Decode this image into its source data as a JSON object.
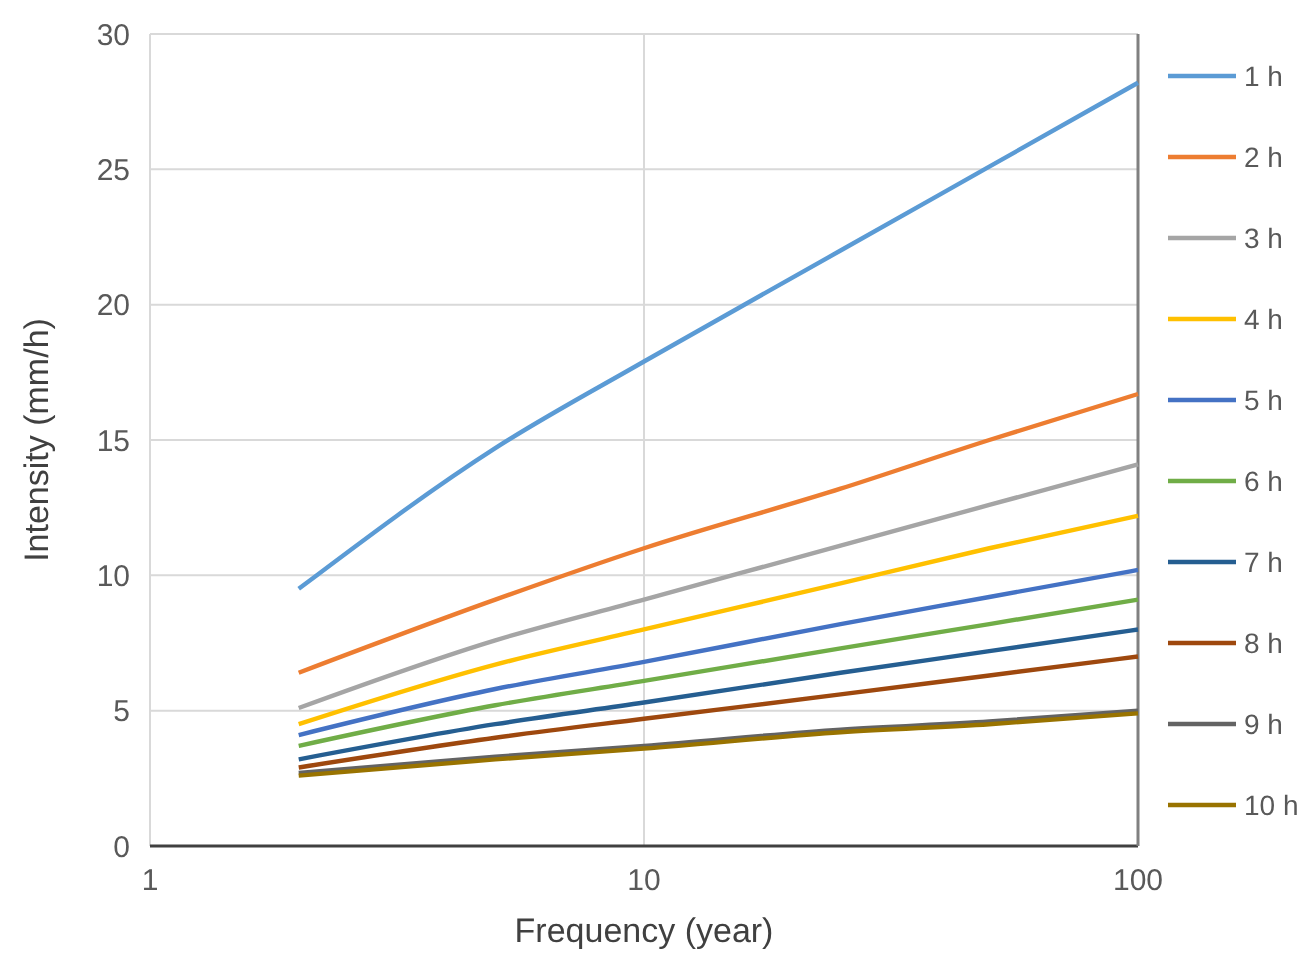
{
  "chart_data": {
    "type": "line",
    "xlabel": "Frequency (year)",
    "ylabel": "Intensity (mm/h)",
    "log": "x",
    "x": [
      2,
      5,
      10,
      25,
      50,
      100
    ],
    "xlim": [
      1,
      100
    ],
    "xticks": [
      1,
      10,
      100
    ],
    "ylim": [
      0,
      30
    ],
    "yticks": [
      0,
      5,
      10,
      15,
      20,
      25,
      30
    ],
    "grid": true,
    "legend": "right",
    "marker": "none",
    "line_style": "solid",
    "series": [
      {
        "name": "1 h",
        "color": "#5b9bd5",
        "values": [
          9.5,
          14.7,
          17.9,
          22.0,
          25.1,
          28.2
        ]
      },
      {
        "name": "2 h",
        "color": "#ed7d31",
        "values": [
          6.4,
          9.1,
          11.0,
          13.2,
          15.0,
          16.7
        ]
      },
      {
        "name": "3 h",
        "color": "#a5a5a5",
        "values": [
          5.1,
          7.6,
          9.1,
          11.1,
          12.6,
          14.1
        ]
      },
      {
        "name": "4 h",
        "color": "#ffc000",
        "values": [
          4.5,
          6.7,
          8.0,
          9.7,
          11.0,
          12.2
        ]
      },
      {
        "name": "5 h",
        "color": "#4472c4",
        "values": [
          4.1,
          5.8,
          6.8,
          8.2,
          9.2,
          10.2
        ]
      },
      {
        "name": "6 h",
        "color": "#70ad47",
        "values": [
          3.7,
          5.2,
          6.1,
          7.3,
          8.2,
          9.1
        ]
      },
      {
        "name": "7 h",
        "color": "#255e91",
        "values": [
          3.2,
          4.5,
          5.3,
          6.4,
          7.2,
          8.0
        ]
      },
      {
        "name": "8 h",
        "color": "#9e480e",
        "values": [
          2.9,
          4.0,
          4.7,
          5.6,
          6.3,
          7.0
        ]
      },
      {
        "name": "9 h",
        "color": "#636363",
        "values": [
          2.7,
          3.3,
          3.7,
          4.3,
          4.6,
          5.0
        ]
      },
      {
        "name": "10 h",
        "color": "#997300",
        "values": [
          2.6,
          3.2,
          3.6,
          4.2,
          4.5,
          4.9
        ]
      }
    ]
  }
}
